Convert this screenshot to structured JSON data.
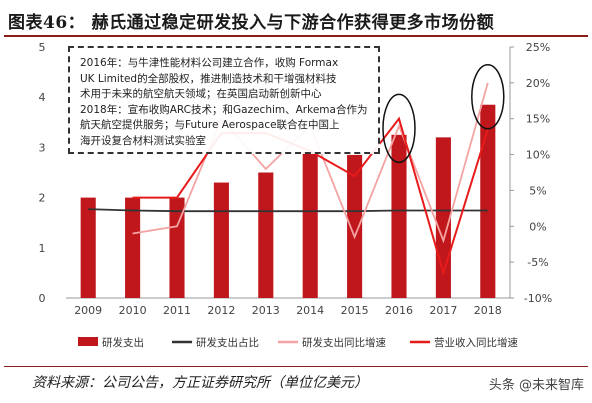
{
  "header": {
    "title": "图表46：  赫氏通过稳定研发投入与下游合作获得更多市场份额"
  },
  "chart_data": {
    "type": "bar",
    "categories": [
      "2009",
      "2010",
      "2011",
      "2012",
      "2013",
      "2014",
      "2015",
      "2016",
      "2017",
      "2018"
    ],
    "y_left": {
      "ylim": [
        0,
        5
      ],
      "ticks": [
        "0",
        "1",
        "2",
        "3",
        "4",
        "5"
      ]
    },
    "y_right": {
      "ylim": [
        -10,
        25
      ],
      "ticks": [
        "-10%",
        "-5%",
        "0%",
        "5%",
        "10%",
        "15%",
        "20%",
        "25%"
      ]
    },
    "series": [
      {
        "name": "研发支出",
        "type": "bar",
        "axis": "left",
        "color": "#c0171c",
        "values": [
          2.0,
          2.0,
          2.0,
          2.3,
          2.5,
          2.9,
          2.85,
          3.25,
          3.2,
          3.85
        ]
      },
      {
        "name": "研发支出占比",
        "type": "line",
        "axis": "right",
        "color": "#333333",
        "values": [
          2.4,
          2.2,
          2.1,
          2.1,
          2.1,
          2.1,
          2.1,
          2.2,
          2.2,
          2.2
        ]
      },
      {
        "name": "研发支出同比增速",
        "type": "line",
        "axis": "right",
        "color": "#f4a3a3",
        "values": [
          null,
          -1.0,
          0.0,
          15.0,
          8.0,
          14.0,
          -1.5,
          14.0,
          -2.0,
          20.0
        ]
      },
      {
        "name": "营业收入同比增速",
        "type": "line",
        "axis": "right",
        "color": "#e81b1b",
        "values": [
          null,
          4.0,
          4.0,
          13.0,
          13.0,
          10.5,
          7.0,
          15.0,
          -6.5,
          13.5
        ]
      }
    ],
    "legend_position": "bottom",
    "grid": false
  },
  "annotation": {
    "lines": [
      "2016年：与牛津性能材料公司建立合作，收购 Formax",
      "UK Limited的全部股权，推进制造技术和干增强材料技",
      "术用于未来的航空航天领域；在英国启动新创新中心",
      "2018年：宣布收购ARC技术；和Gazechim、Arkema合作为",
      "航天航空提供服务；与Future Aerospace联合在中国上",
      "海开设复合材料测试实验室"
    ]
  },
  "footer": {
    "source": "资料来源：公司公告，方正证券研究所（单位亿美元）",
    "watermark": "头条 @未来智库"
  },
  "colors": {
    "accent": "#8b1d1d",
    "bar": "#c0171c"
  }
}
